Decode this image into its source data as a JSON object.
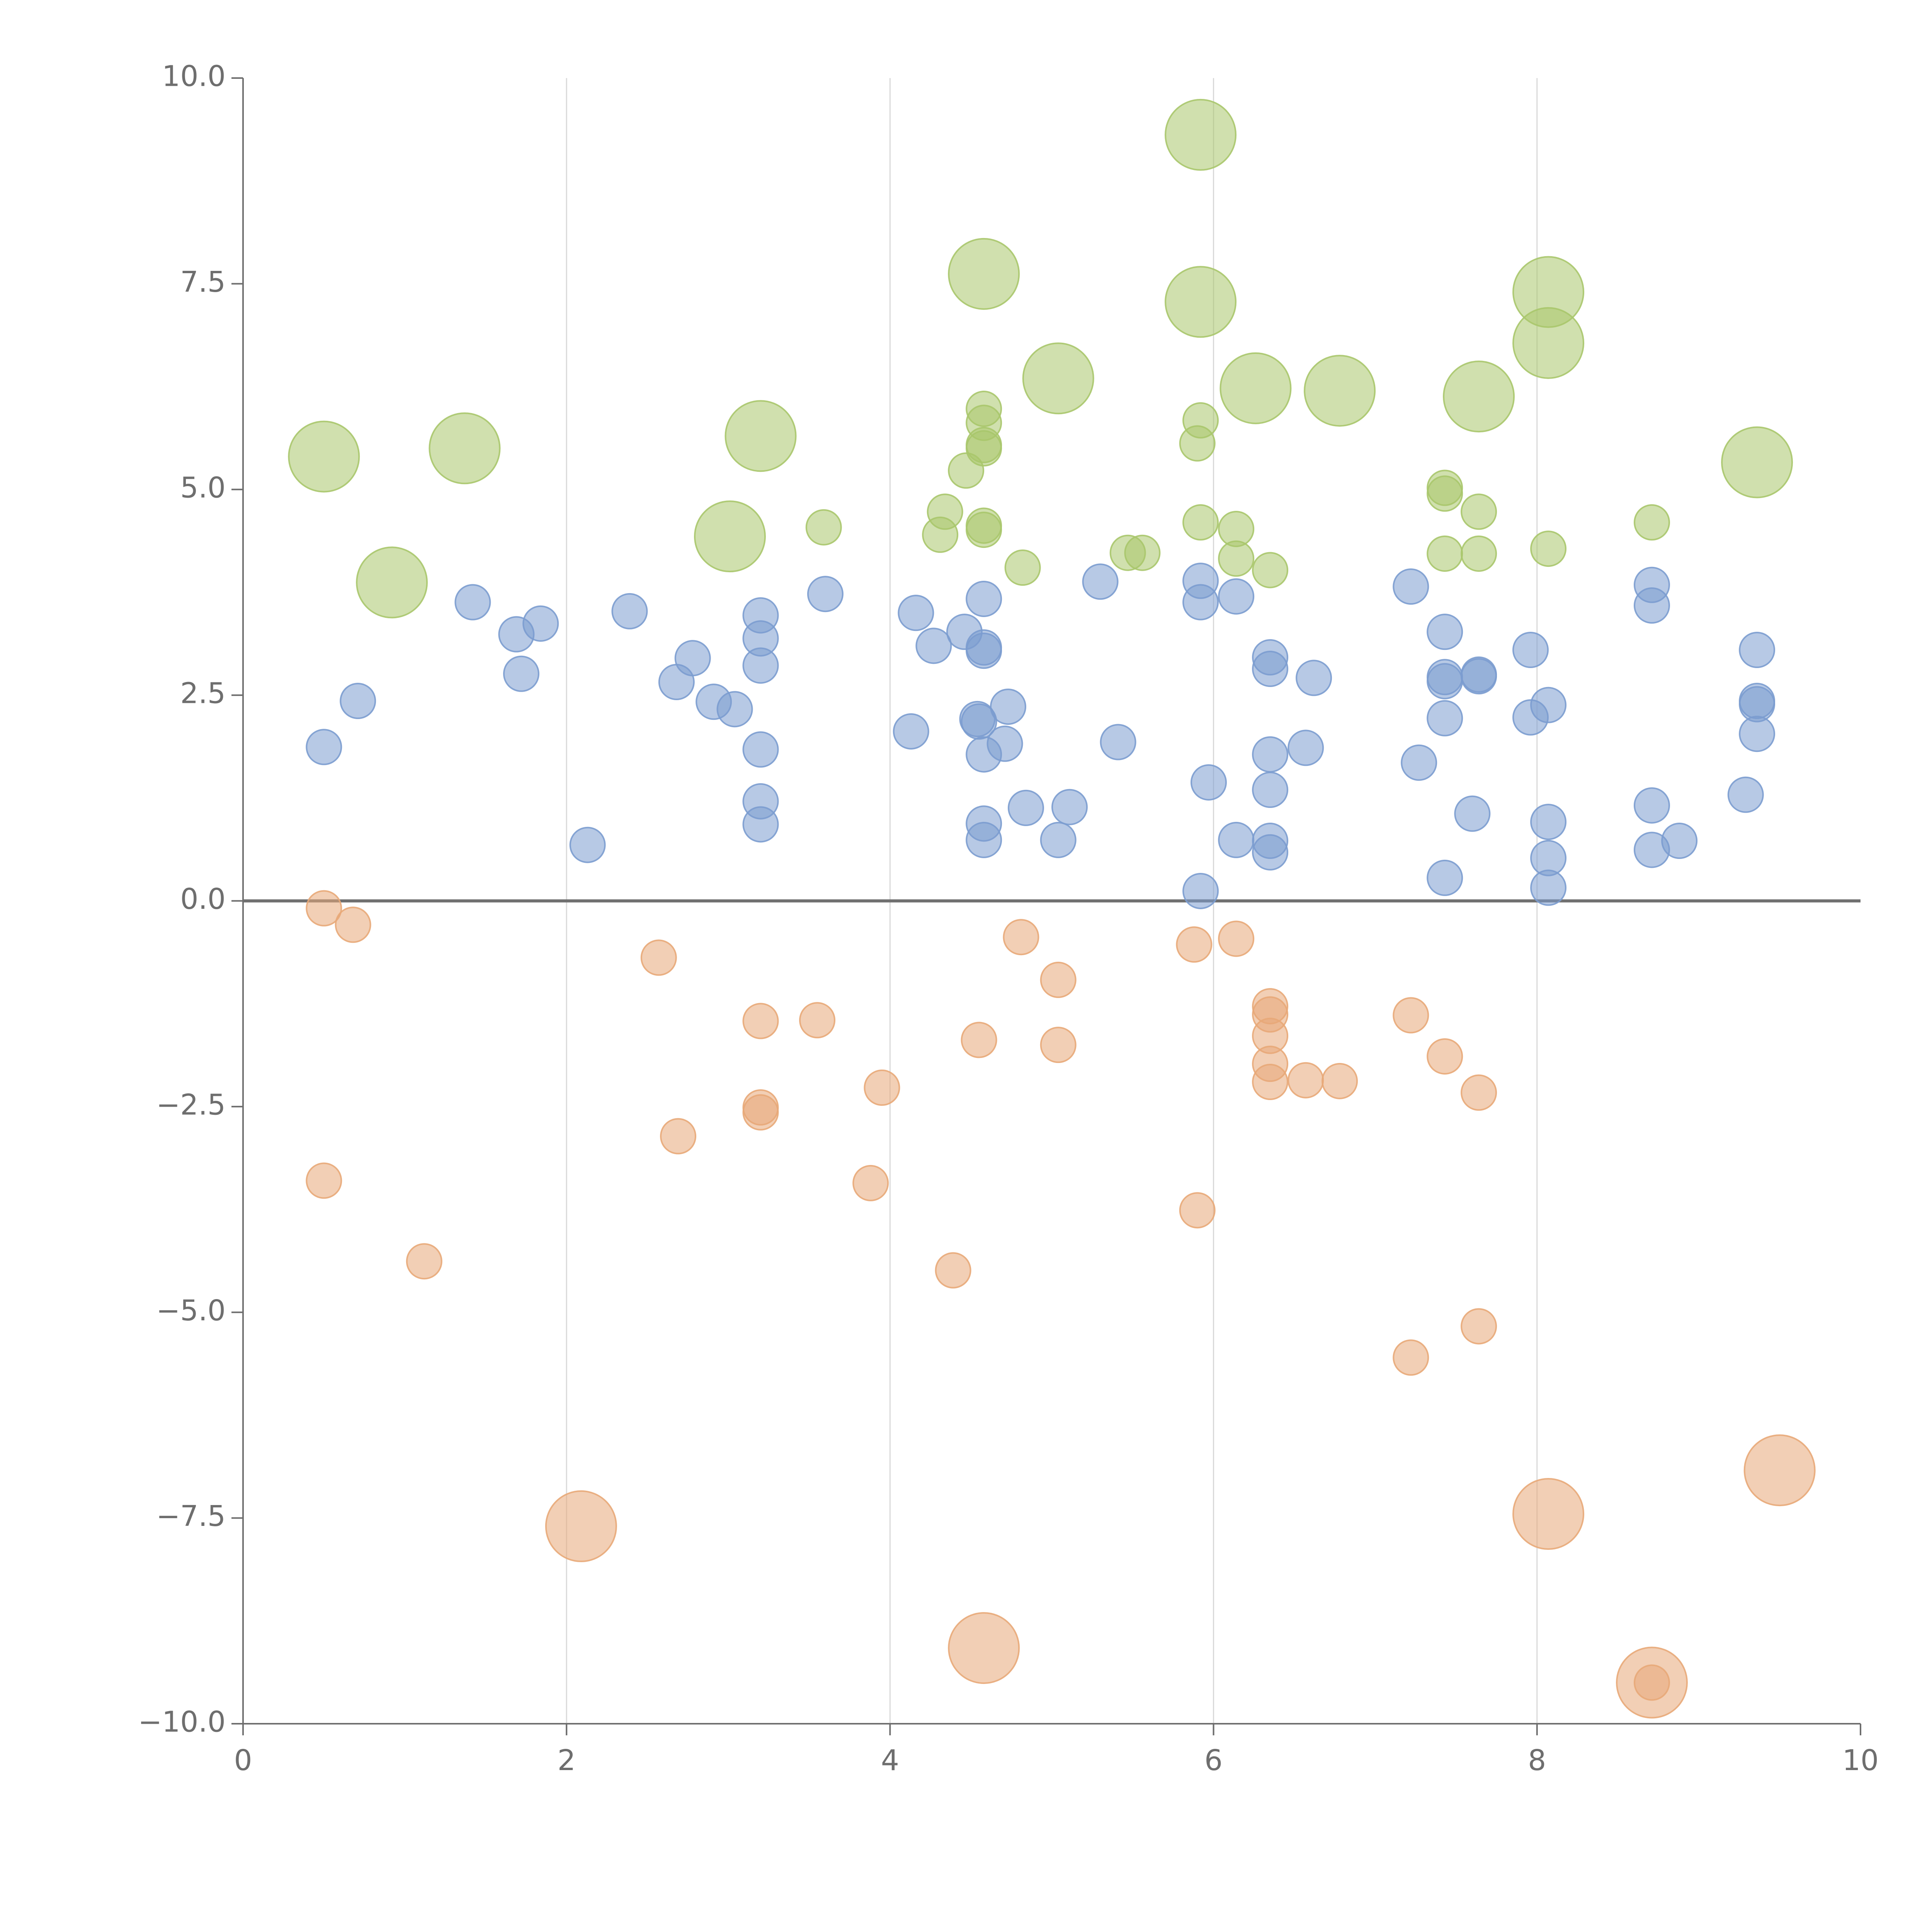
{
  "chart_data": {
    "type": "scatter",
    "subtype": "bubble",
    "title": "",
    "xlabel": "",
    "ylabel": "",
    "xlim": [
      0,
      10
    ],
    "ylim": [
      -10,
      10
    ],
    "x_ticks": [
      0,
      2,
      4,
      6,
      8,
      10
    ],
    "y_ticks": [
      -10.0,
      -7.5,
      -5.0,
      -2.5,
      0.0,
      2.5,
      5.0,
      7.5,
      10.0
    ],
    "x_tick_labels": [
      "0",
      "2",
      "4",
      "6",
      "8",
      "10"
    ],
    "y_tick_labels": [
      "−10.0",
      "−7.5",
      "−5.0",
      "−2.5",
      "0.0",
      "2.5",
      "5.0",
      "7.5",
      "10.0"
    ],
    "grid": "vertical lines at x ticks",
    "reference_line": {
      "y": 0
    },
    "series": [
      {
        "name": "green",
        "color": "#a9c66b",
        "points": [
          [
            0.5,
            5.4,
            3
          ],
          [
            1.37,
            5.5,
            3
          ],
          [
            0.92,
            3.87,
            3
          ],
          [
            3.2,
            5.65,
            3
          ],
          [
            3.01,
            4.43,
            3
          ],
          [
            3.59,
            4.54,
            1
          ],
          [
            4.58,
            7.62,
            3
          ],
          [
            5.04,
            6.35,
            3
          ],
          [
            5.92,
            9.31,
            3
          ],
          [
            5.92,
            7.28,
            3
          ],
          [
            6.26,
            6.23,
            3
          ],
          [
            6.78,
            6.2,
            3
          ],
          [
            7.64,
            6.13,
            3
          ],
          [
            8.07,
            7.4,
            3
          ],
          [
            8.07,
            6.78,
            3
          ],
          [
            9.36,
            5.33,
            3
          ],
          [
            4.47,
            5.23,
            1
          ],
          [
            4.58,
            5.98,
            1
          ],
          [
            4.58,
            5.81,
            1
          ],
          [
            4.58,
            5.54,
            1
          ],
          [
            4.58,
            5.5,
            1
          ],
          [
            4.34,
            4.73,
            1
          ],
          [
            4.31,
            4.45,
            1
          ],
          [
            4.58,
            4.56,
            1
          ],
          [
            4.58,
            4.51,
            1
          ],
          [
            4.82,
            4.05,
            1
          ],
          [
            5.92,
            5.84,
            1
          ],
          [
            5.9,
            5.56,
            1
          ],
          [
            5.92,
            4.6,
            1
          ],
          [
            6.14,
            4.52,
            1
          ],
          [
            6.14,
            4.16,
            1
          ],
          [
            6.35,
            4.02,
            1
          ],
          [
            5.47,
            4.23,
            1
          ],
          [
            5.56,
            4.23,
            1
          ],
          [
            7.43,
            5.02,
            1
          ],
          [
            7.43,
            4.95,
            1
          ],
          [
            7.43,
            4.22,
            1
          ],
          [
            7.64,
            4.73,
            1
          ],
          [
            7.64,
            4.22,
            1
          ],
          [
            8.07,
            4.28,
            1
          ],
          [
            8.71,
            4.6,
            1
          ]
        ]
      },
      {
        "name": "blue",
        "color": "#7b9ccf",
        "points": [
          [
            0.5,
            1.87,
            1
          ],
          [
            0.71,
            2.43,
            1
          ],
          [
            1.42,
            3.63,
            1
          ],
          [
            1.69,
            3.24,
            1
          ],
          [
            1.84,
            3.37,
            1
          ],
          [
            1.72,
            2.76,
            1
          ],
          [
            2.13,
            0.68,
            1
          ],
          [
            2.39,
            3.52,
            1
          ],
          [
            2.68,
            2.66,
            1
          ],
          [
            2.78,
            2.95,
            1
          ],
          [
            2.91,
            2.42,
            1
          ],
          [
            3.04,
            2.33,
            1
          ],
          [
            3.2,
            3.47,
            1
          ],
          [
            3.2,
            3.19,
            1
          ],
          [
            3.2,
            2.86,
            1
          ],
          [
            3.2,
            1.84,
            1
          ],
          [
            3.2,
            1.21,
            1
          ],
          [
            3.2,
            0.93,
            1
          ],
          [
            3.6,
            3.73,
            1
          ],
          [
            4.13,
            2.06,
            1
          ],
          [
            4.16,
            3.5,
            1
          ],
          [
            4.27,
            3.1,
            1
          ],
          [
            4.46,
            3.27,
            1
          ],
          [
            4.54,
            2.21,
            1
          ],
          [
            4.55,
            2.18,
            1
          ],
          [
            4.58,
            3.67,
            1
          ],
          [
            4.58,
            3.08,
            1
          ],
          [
            4.58,
            3.04,
            1
          ],
          [
            4.58,
            1.78,
            1
          ],
          [
            4.58,
            0.94,
            1
          ],
          [
            4.58,
            0.74,
            1
          ],
          [
            4.73,
            2.36,
            1
          ],
          [
            4.71,
            1.91,
            1
          ],
          [
            4.84,
            1.13,
            1
          ],
          [
            5.04,
            0.74,
            1
          ],
          [
            5.11,
            1.14,
            1
          ],
          [
            5.3,
            3.88,
            1
          ],
          [
            5.41,
            1.93,
            1
          ],
          [
            5.92,
            3.89,
            1
          ],
          [
            5.92,
            3.63,
            1
          ],
          [
            5.97,
            1.44,
            1
          ],
          [
            5.92,
            0.12,
            1
          ],
          [
            6.14,
            3.7,
            1
          ],
          [
            6.14,
            0.74,
            1
          ],
          [
            6.35,
            2.96,
            1
          ],
          [
            6.35,
            2.82,
            1
          ],
          [
            6.35,
            1.78,
            1
          ],
          [
            6.35,
            1.35,
            1
          ],
          [
            6.35,
            0.73,
            1
          ],
          [
            6.35,
            0.59,
            1
          ],
          [
            6.57,
            1.86,
            1
          ],
          [
            6.62,
            2.71,
            1
          ],
          [
            7.22,
            3.82,
            1
          ],
          [
            7.27,
            1.68,
            1
          ],
          [
            7.43,
            3.27,
            1
          ],
          [
            7.43,
            2.72,
            1
          ],
          [
            7.43,
            2.67,
            1
          ],
          [
            7.43,
            2.22,
            1
          ],
          [
            7.43,
            0.28,
            1
          ],
          [
            7.64,
            2.75,
            1
          ],
          [
            7.64,
            2.73,
            1
          ],
          [
            7.6,
            1.06,
            1
          ],
          [
            7.96,
            3.05,
            1
          ],
          [
            7.96,
            2.23,
            1
          ],
          [
            8.07,
            2.38,
            1
          ],
          [
            8.07,
            0.96,
            1
          ],
          [
            8.07,
            0.52,
            1
          ],
          [
            8.07,
            0.16,
            1
          ],
          [
            8.71,
            3.84,
            1
          ],
          [
            8.71,
            3.59,
            1
          ],
          [
            8.71,
            1.16,
            1
          ],
          [
            8.71,
            0.62,
            1
          ],
          [
            8.88,
            0.73,
            1
          ],
          [
            9.29,
            1.29,
            1
          ],
          [
            9.36,
            3.05,
            1
          ],
          [
            9.36,
            2.43,
            1
          ],
          [
            9.36,
            2.39,
            1
          ],
          [
            9.36,
            2.03,
            1
          ]
        ]
      },
      {
        "name": "orange",
        "color": "#e8a878",
        "points": [
          [
            0.5,
            -0.09,
            1
          ],
          [
            0.68,
            -0.29,
            1
          ],
          [
            0.5,
            -3.4,
            1
          ],
          [
            1.12,
            -4.38,
            1
          ],
          [
            2.09,
            -7.6,
            3
          ],
          [
            2.57,
            -0.69,
            1
          ],
          [
            2.69,
            -2.86,
            1
          ],
          [
            3.2,
            -1.46,
            1
          ],
          [
            3.2,
            -2.51,
            1
          ],
          [
            3.2,
            -2.57,
            1
          ],
          [
            3.55,
            -1.45,
            1
          ],
          [
            3.88,
            -3.43,
            1
          ],
          [
            3.95,
            -2.27,
            1
          ],
          [
            4.39,
            -4.49,
            1
          ],
          [
            4.55,
            -1.69,
            1
          ],
          [
            4.58,
            -9.08,
            3
          ],
          [
            4.81,
            -0.44,
            1
          ],
          [
            5.04,
            -0.96,
            1
          ],
          [
            5.04,
            -1.75,
            1
          ],
          [
            5.88,
            -0.53,
            1
          ],
          [
            5.9,
            -3.76,
            1
          ],
          [
            6.14,
            -0.46,
            1
          ],
          [
            6.35,
            -1.28,
            1
          ],
          [
            6.35,
            -1.38,
            1
          ],
          [
            6.35,
            -1.64,
            1
          ],
          [
            6.35,
            -1.98,
            1
          ],
          [
            6.35,
            -2.2,
            1
          ],
          [
            6.57,
            -2.18,
            1
          ],
          [
            6.78,
            -2.19,
            1
          ],
          [
            7.22,
            -1.39,
            1
          ],
          [
            7.43,
            -1.89,
            1
          ],
          [
            7.64,
            -2.33,
            1
          ],
          [
            7.22,
            -5.55,
            1
          ],
          [
            7.64,
            -5.17,
            1
          ],
          [
            8.07,
            -7.45,
            3
          ],
          [
            8.71,
            -9.5,
            3
          ],
          [
            8.71,
            -9.5,
            1
          ],
          [
            9.5,
            -6.92,
            3
          ]
        ]
      }
    ]
  }
}
